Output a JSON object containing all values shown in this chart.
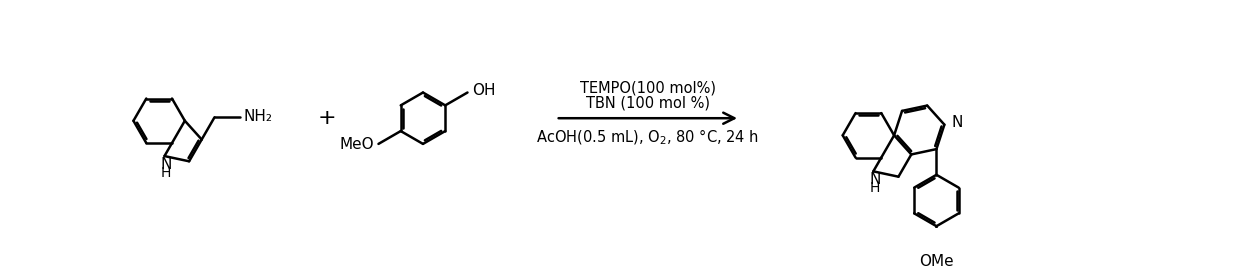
{
  "bg_color": "#ffffff",
  "line_color": "#000000",
  "line_width": 1.8,
  "arrow_above_line1": "TEMPO(100 mol%)",
  "arrow_above_line2": "TBN (100 mol %)",
  "arrow_below": "AcOH(0.5 mL), O₂, 80 °C, 24 h",
  "plus_sign": "+",
  "nh2_label": "NH₂",
  "nh_label": "NH",
  "h_label": "H",
  "oh_label": "OH",
  "meo_label": "MeO",
  "ome_label": "OMe",
  "n_label": "N",
  "font_size_labels": 11,
  "font_size_conditions": 10.5,
  "font_size_plus": 16
}
